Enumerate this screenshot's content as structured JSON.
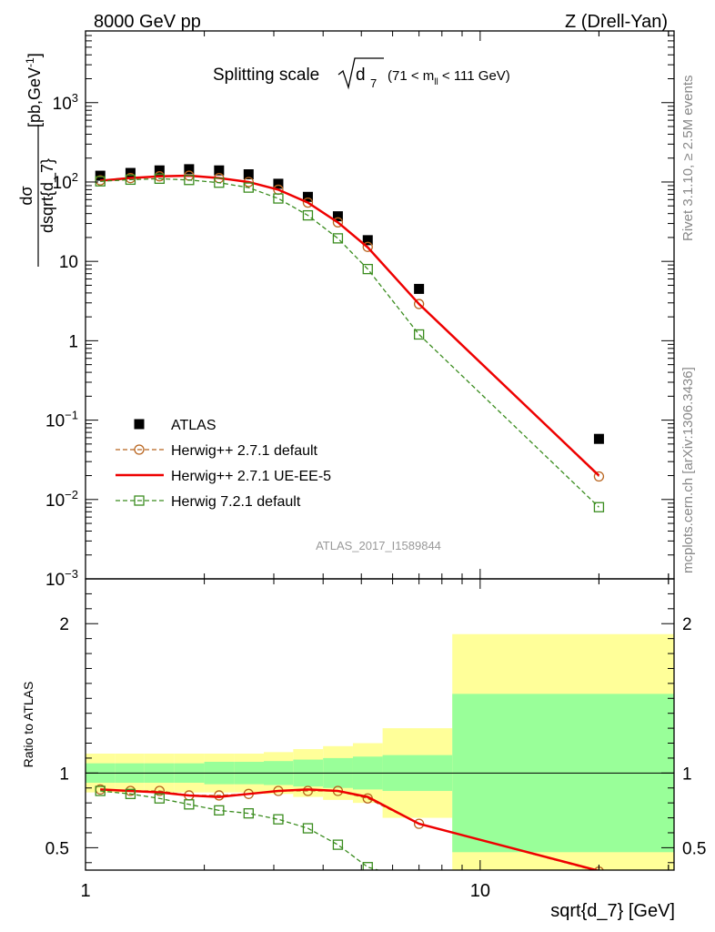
{
  "header": {
    "left": "8000 GeV pp",
    "right": "Z (Drell-Yan)"
  },
  "side": {
    "rivet": "Rivet 3.1.10, ≥ 2.5M events",
    "mcplots": "mcplots.cern.ch [arXiv:1306.3436]"
  },
  "chart_data": {
    "type": "line",
    "title_main": "Splitting scale",
    "title_sqrt": "d",
    "title_sub": "7",
    "title_cut_pre": "(71 < m",
    "title_cut_sub": "ll",
    "title_cut_post": " < 111 GeV)",
    "watermark": "ATLAS_2017_I1589844",
    "xlabel": "sqrt{d_7} [GeV]",
    "ylabel_num": "dσ",
    "ylabel_den": "dsqrt{d_7}",
    "ylabel_unit": "[pb,GeV",
    "ylabel_unit_sup": "-1",
    "ylabel_unit_close": "]",
    "ratio_ylabel": "Ratio to ATLAS",
    "x_scale": "log",
    "xlim": [
      1,
      31
    ],
    "ylim": [
      0.001,
      8000
    ],
    "y_scale": "log",
    "ratio_ylim": [
      0.35,
      2.3
    ],
    "x_tick_labels": [
      "1",
      "10"
    ],
    "y_tick_labels": [
      {
        "v": 1000,
        "base": "10",
        "exp": "3"
      },
      {
        "v": 100,
        "base": "10",
        "exp": "2"
      },
      {
        "v": 10,
        "base": "10",
        "exp": ""
      },
      {
        "v": 1,
        "base": "1",
        "exp": ""
      },
      {
        "v": 0.1,
        "base": "10",
        "exp": "−1"
      },
      {
        "v": 0.01,
        "base": "10",
        "exp": "−2"
      },
      {
        "v": 0.001,
        "base": "10",
        "exp": "−3"
      }
    ],
    "ratio_tick_labels": [
      {
        "v": 2,
        "label": "2"
      },
      {
        "v": 1,
        "label": "1"
      },
      {
        "v": 0.5,
        "label": "0.5"
      }
    ],
    "bin_edges": [
      1.0,
      1.19,
      1.41,
      1.68,
      2.0,
      2.38,
      2.83,
      3.36,
      4.0,
      4.76,
      5.66,
      8.5,
      31.0
    ],
    "x": [
      1.09,
      1.3,
      1.54,
      1.83,
      2.18,
      2.59,
      3.08,
      3.66,
      4.36,
      5.19,
      7.0,
      20.0
    ],
    "series": [
      {
        "name": "ATLAS",
        "color": "#000000",
        "marker": "filled-square",
        "values": [
          120,
          130,
          140,
          145,
          140,
          125,
          95,
          65,
          37,
          18.5,
          4.5,
          0.058
        ]
      },
      {
        "name": "Herwig++ 2.7.1 default",
        "color": "#b8641e",
        "marker": "open-circle",
        "line": "dashed",
        "values": [
          105,
          112,
          118,
          120,
          112,
          100,
          80,
          55,
          31,
          15.2,
          2.9,
          0.0195
        ],
        "ratio": [
          0.89,
          0.88,
          0.88,
          0.85,
          0.85,
          0.86,
          0.88,
          0.88,
          0.88,
          0.83,
          0.66,
          0.34
        ]
      },
      {
        "name": "Herwig++ 2.7.1 UE-EE-5",
        "color": "#ee0000",
        "marker": "none",
        "line": "solid",
        "values": [
          104,
          112,
          118,
          120,
          112,
          100,
          80,
          55,
          31,
          15.0,
          2.9,
          0.02
        ],
        "ratio": [
          0.89,
          0.88,
          0.87,
          0.85,
          0.84,
          0.86,
          0.88,
          0.89,
          0.88,
          0.84,
          0.66,
          0.345
        ]
      },
      {
        "name": "Herwig 7.2.1 default",
        "color": "#3a8c1e",
        "marker": "open-square",
        "line": "dashed",
        "values": [
          102,
          107,
          110,
          106,
          98,
          85,
          62,
          38,
          19.5,
          8.0,
          1.2,
          0.008
        ],
        "ratio": [
          0.88,
          0.86,
          0.83,
          0.79,
          0.75,
          0.73,
          0.69,
          0.63,
          0.52,
          0.37,
          0.27,
          0.14
        ]
      }
    ],
    "ratio_band_inner": [
      0.065,
      0.065,
      0.065,
      0.065,
      0.075,
      0.075,
      0.08,
      0.09,
      0.1,
      0.11,
      0.12,
      0.53
    ],
    "ratio_band_outer": [
      0.13,
      0.13,
      0.13,
      0.13,
      0.13,
      0.13,
      0.14,
      0.16,
      0.18,
      0.2,
      0.3,
      0.93
    ],
    "ratio_ref_line": 1,
    "grid": false,
    "legend_position": "lower-left"
  }
}
